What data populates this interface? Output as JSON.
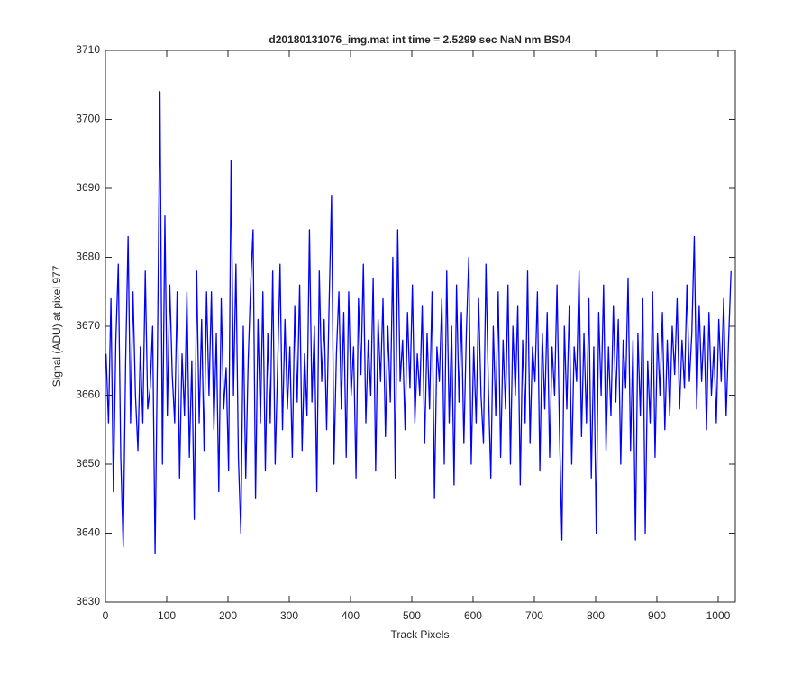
{
  "chart_data": {
    "type": "line",
    "title": "d20180131076_img.mat int time = 2.5299 sec  NaN nm BS04",
    "x_label": "Track Pixels",
    "y_label": "Signal (ADU) at pixel 977",
    "xlim": [
      0,
      1028
    ],
    "ylim": [
      3630,
      3710
    ],
    "xticks": [
      0,
      100,
      200,
      300,
      400,
      500,
      600,
      700,
      800,
      900,
      1000
    ],
    "yticks": [
      3630,
      3640,
      3650,
      3660,
      3670,
      3680,
      3690,
      3700,
      3710
    ],
    "grid": false,
    "series": [
      {
        "color": "#0000ff",
        "x": [
          1,
          5,
          9,
          13,
          17,
          21,
          25,
          29,
          33,
          37,
          41,
          45,
          49,
          53,
          57,
          61,
          65,
          69,
          73,
          77,
          81,
          85,
          89,
          93,
          97,
          101,
          105,
          109,
          113,
          117,
          121,
          125,
          129,
          133,
          137,
          141,
          145,
          149,
          153,
          157,
          161,
          165,
          169,
          173,
          177,
          181,
          185,
          189,
          193,
          197,
          201,
          205,
          209,
          213,
          217,
          221,
          225,
          229,
          233,
          237,
          241,
          245,
          249,
          253,
          257,
          261,
          265,
          269,
          273,
          277,
          281,
          285,
          289,
          293,
          297,
          301,
          305,
          309,
          313,
          317,
          321,
          325,
          329,
          333,
          337,
          341,
          345,
          349,
          353,
          357,
          361,
          365,
          369,
          373,
          377,
          381,
          385,
          389,
          393,
          397,
          401,
          405,
          409,
          413,
          417,
          421,
          425,
          429,
          433,
          437,
          441,
          445,
          449,
          453,
          457,
          461,
          465,
          469,
          473,
          477,
          481,
          485,
          489,
          493,
          497,
          501,
          505,
          509,
          513,
          517,
          521,
          525,
          529,
          533,
          537,
          541,
          545,
          549,
          553,
          557,
          561,
          565,
          569,
          573,
          577,
          581,
          585,
          589,
          593,
          597,
          601,
          605,
          609,
          613,
          617,
          621,
          625,
          629,
          633,
          637,
          641,
          645,
          649,
          653,
          657,
          661,
          665,
          669,
          673,
          677,
          681,
          685,
          689,
          693,
          697,
          701,
          705,
          709,
          713,
          717,
          721,
          725,
          729,
          733,
          737,
          741,
          745,
          749,
          753,
          757,
          761,
          765,
          769,
          773,
          777,
          781,
          785,
          789,
          793,
          797,
          801,
          805,
          809,
          813,
          817,
          821,
          825,
          829,
          833,
          837,
          841,
          845,
          849,
          853,
          857,
          861,
          865,
          869,
          873,
          877,
          881,
          885,
          889,
          893,
          897,
          901,
          905,
          909,
          913,
          917,
          921,
          925,
          929,
          933,
          937,
          941,
          945,
          949,
          953,
          957,
          961,
          965,
          969,
          973,
          977,
          981,
          985,
          989,
          993,
          997,
          1001,
          1005,
          1009,
          1013,
          1017,
          1021
        ],
        "values": [
          3666,
          3656,
          3674,
          3646,
          3668,
          3679,
          3651,
          3638,
          3665,
          3683,
          3656,
          3675,
          3660,
          3652,
          3667,
          3656,
          3678,
          3658,
          3661,
          3670,
          3637,
          3667,
          3704,
          3650,
          3686,
          3657,
          3676,
          3663,
          3656,
          3675,
          3648,
          3666,
          3657,
          3675,
          3651,
          3665,
          3642,
          3678,
          3656,
          3671,
          3652,
          3675,
          3660,
          3675,
          3655,
          3669,
          3646,
          3674,
          3658,
          3664,
          3649,
          3694,
          3660,
          3679,
          3651,
          3640,
          3670,
          3648,
          3665,
          3676,
          3684,
          3645,
          3671,
          3656,
          3675,
          3649,
          3669,
          3656,
          3678,
          3650,
          3664,
          3679,
          3655,
          3671,
          3658,
          3667,
          3651,
          3673,
          3659,
          3676,
          3652,
          3666,
          3657,
          3684,
          3659,
          3670,
          3646,
          3678,
          3662,
          3671,
          3655,
          3673,
          3689,
          3650,
          3666,
          3675,
          3658,
          3672,
          3651,
          3675,
          3660,
          3667,
          3648,
          3674,
          3663,
          3679,
          3656,
          3668,
          3660,
          3677,
          3649,
          3671,
          3662,
          3674,
          3654,
          3670,
          3659,
          3680,
          3648,
          3684,
          3662,
          3668,
          3655,
          3672,
          3661,
          3676,
          3656,
          3666,
          3660,
          3673,
          3653,
          3669,
          3658,
          3675,
          3645,
          3667,
          3662,
          3674,
          3650,
          3678,
          3656,
          3670,
          3647,
          3676,
          3659,
          3672,
          3653,
          3669,
          3680,
          3650,
          3667,
          3656,
          3674,
          3660,
          3653,
          3679,
          3661,
          3648,
          3670,
          3657,
          3675,
          3651,
          3668,
          3658,
          3676,
          3650,
          3670,
          3660,
          3673,
          3647,
          3668,
          3656,
          3678,
          3653,
          3667,
          3662,
          3675,
          3649,
          3669,
          3658,
          3672,
          3651,
          3667,
          3660,
          3676,
          3655,
          3639,
          3670,
          3658,
          3673,
          3650,
          3667,
          3662,
          3678,
          3654,
          3669,
          3656,
          3674,
          3648,
          3667,
          3640,
          3672,
          3660,
          3676,
          3652,
          3667,
          3657,
          3673,
          3659,
          3671,
          3650,
          3668,
          3661,
          3677,
          3652,
          3668,
          3639,
          3669,
          3657,
          3674,
          3640,
          3665,
          3656,
          3675,
          3651,
          3669,
          3660,
          3672,
          3655,
          3668,
          3657,
          3670,
          3663,
          3674,
          3658,
          3668,
          3661,
          3676,
          3662,
          3669,
          3683,
          3658,
          3673,
          3662,
          3670,
          3655,
          3672,
          3660,
          3667,
          3656,
          3671,
          3662,
          3674,
          3657,
          3668,
          3678
        ]
      }
    ]
  }
}
